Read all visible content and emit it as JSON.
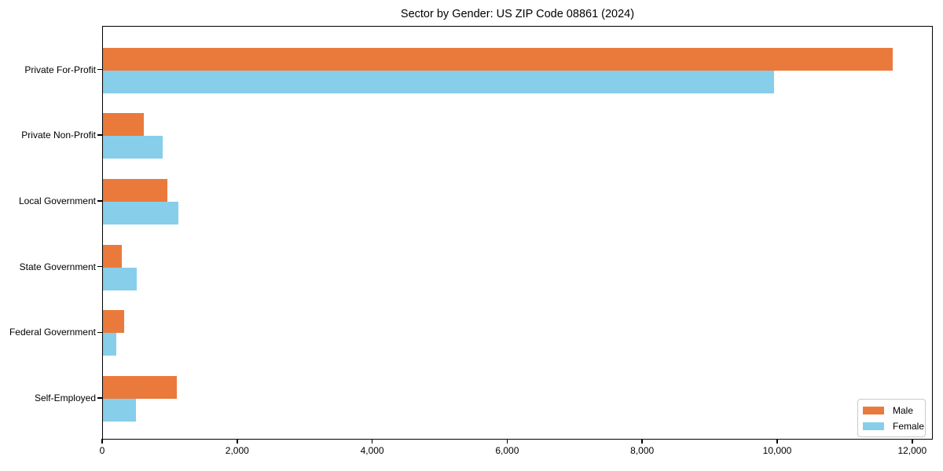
{
  "chart_data": {
    "type": "bar",
    "orientation": "horizontal",
    "title": "Sector by Gender: US ZIP Code 08861 (2024)",
    "categories": [
      "Private For-Profit",
      "Private Non-Profit",
      "Local Government",
      "State Government",
      "Federal Government",
      "Self-Employed"
    ],
    "series": [
      {
        "name": "Male",
        "color": "#EA7A3C",
        "values": [
          11700,
          605,
          960,
          285,
          320,
          1100
        ]
      },
      {
        "name": "Female",
        "color": "#87CEEB",
        "values": [
          9940,
          885,
          1120,
          505,
          200,
          490
        ]
      }
    ],
    "xlim": [
      0,
      12000
    ],
    "x_ticks": [
      0,
      2000,
      4000,
      6000,
      8000,
      10000,
      12000
    ],
    "x_tick_labels": [
      "0",
      "2,000",
      "4,000",
      "6,000",
      "8,000",
      "10,000",
      "12,000"
    ],
    "xlabel": "",
    "ylabel": "",
    "grid": false,
    "legend_position": "lower right",
    "bar_order_in_group": [
      "Male",
      "Female"
    ]
  }
}
